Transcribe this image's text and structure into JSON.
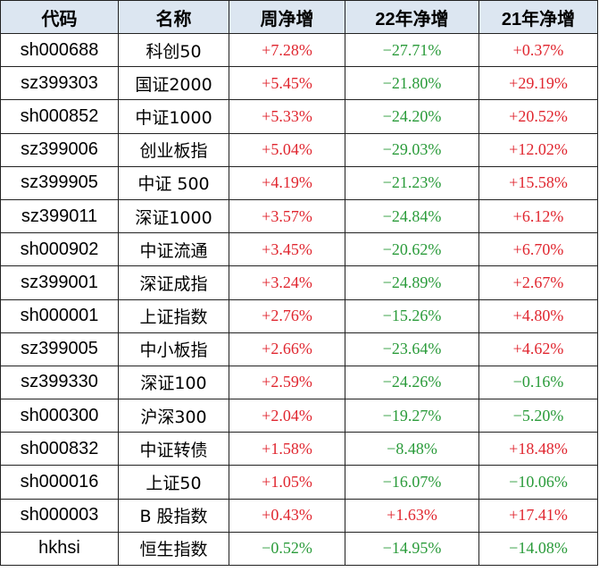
{
  "headers": [
    "代码",
    "名称",
    "周净增",
    "22年净增",
    "21年净增"
  ],
  "colors": {
    "positive": "#e0262f",
    "negative": "#2a9b3a"
  },
  "rows": [
    {
      "code": "sh000688",
      "name": "科创50",
      "week": "+7.28%",
      "y22": "−27.71%",
      "y21": "+0.37%"
    },
    {
      "code": "sz399303",
      "name": "国证2000",
      "week": "+5.45%",
      "y22": "−21.80%",
      "y21": "+29.19%"
    },
    {
      "code": "sh000852",
      "name": "中证1000",
      "week": "+5.33%",
      "y22": "−24.20%",
      "y21": "+20.52%"
    },
    {
      "code": "sz399006",
      "name": "创业板指",
      "week": "+5.04%",
      "y22": "−29.03%",
      "y21": "+12.02%"
    },
    {
      "code": "sz399905",
      "name": "中证 500",
      "week": "+4.19%",
      "y22": "−21.23%",
      "y21": "+15.58%"
    },
    {
      "code": "sz399011",
      "name": "深证1000",
      "week": "+3.57%",
      "y22": "−24.84%",
      "y21": "+6.12%"
    },
    {
      "code": "sh000902",
      "name": "中证流通",
      "week": "+3.45%",
      "y22": "−20.62%",
      "y21": "+6.70%"
    },
    {
      "code": "sz399001",
      "name": "深证成指",
      "week": "+3.24%",
      "y22": "−24.89%",
      "y21": "+2.67%"
    },
    {
      "code": "sh000001",
      "name": "上证指数",
      "week": "+2.76%",
      "y22": "−15.26%",
      "y21": "+4.80%"
    },
    {
      "code": "sz399005",
      "name": "中小板指",
      "week": "+2.66%",
      "y22": "−23.64%",
      "y21": "+4.62%"
    },
    {
      "code": "sz399330",
      "name": "深证100",
      "week": "+2.59%",
      "y22": "−24.26%",
      "y21": "−0.16%"
    },
    {
      "code": "sh000300",
      "name": "沪深300",
      "week": "+2.04%",
      "y22": "−19.27%",
      "y21": "−5.20%"
    },
    {
      "code": "sh000832",
      "name": "中证转债",
      "week": "+1.58%",
      "y22": "−8.48%",
      "y21": "+18.48%"
    },
    {
      "code": "sh000016",
      "name": "上证50",
      "week": "+1.05%",
      "y22": "−16.07%",
      "y21": "−10.06%"
    },
    {
      "code": "sh000003",
      "name": "B 股指数",
      "week": "+0.43%",
      "y22": "+1.63%",
      "y21": "+17.41%"
    },
    {
      "code": "hkhsi",
      "name": "恒生指数",
      "week": "−0.52%",
      "y22": "−14.95%",
      "y21": "−14.08%"
    }
  ]
}
